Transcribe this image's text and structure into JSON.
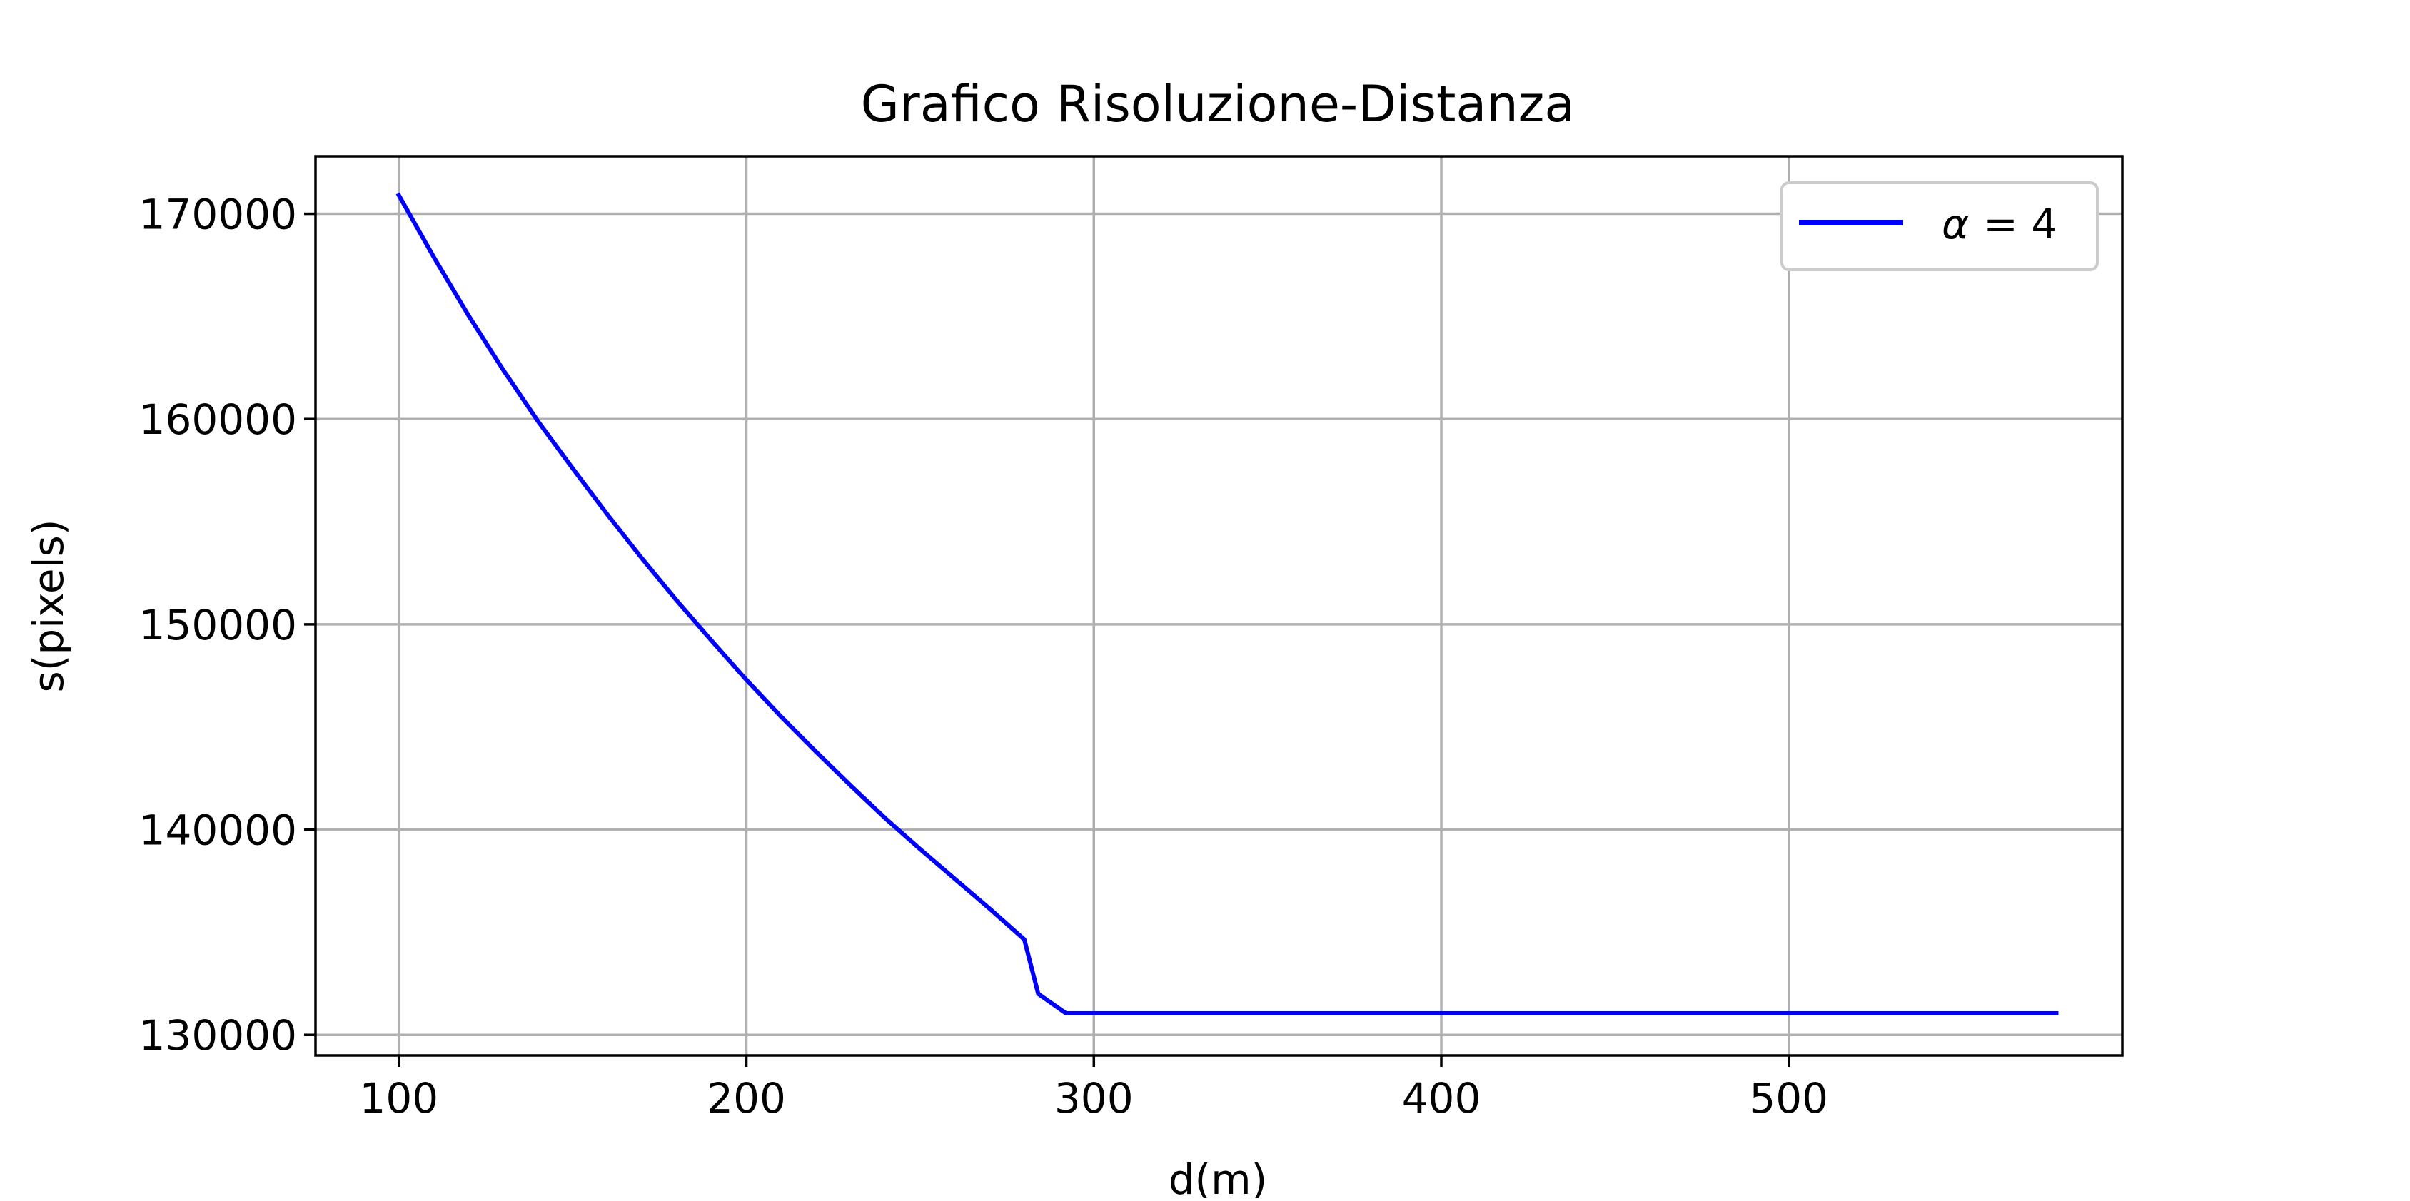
{
  "chart_data": {
    "type": "line",
    "title": "Grafico Risoluzione-Distanza",
    "xlabel": "d(m)",
    "ylabel": "s(pixels)",
    "xlim": [
      76,
      596
    ],
    "ylim": [
      129000,
      172800
    ],
    "xticks": [
      100,
      200,
      300,
      400,
      500
    ],
    "yticks": [
      130000,
      140000,
      150000,
      160000,
      170000
    ],
    "xtick_labels": [
      "100",
      "200",
      "300",
      "400",
      "500"
    ],
    "ytick_labels": [
      "130000",
      "140000",
      "150000",
      "160000",
      "170000"
    ],
    "grid": true,
    "legend_position": "top-right",
    "series": [
      {
        "name": "α = 4",
        "legend_label": "= 4",
        "legend_symbol": "α",
        "color": "#0000ff",
        "x": [
          100,
          110,
          120,
          130,
          140,
          150,
          160,
          170,
          180,
          190,
          200,
          210,
          220,
          230,
          240,
          250,
          260,
          270,
          280,
          284,
          292,
          300,
          350,
          400,
          450,
          500,
          550,
          577
        ],
        "y": [
          170900,
          167900,
          165050,
          162400,
          159900,
          157600,
          155350,
          153200,
          151150,
          149200,
          147300,
          145500,
          143800,
          142150,
          140550,
          139050,
          137600,
          136150,
          134650,
          132000,
          131050,
          131050,
          131050,
          131050,
          131050,
          131050,
          131050,
          131050
        ]
      }
    ]
  }
}
